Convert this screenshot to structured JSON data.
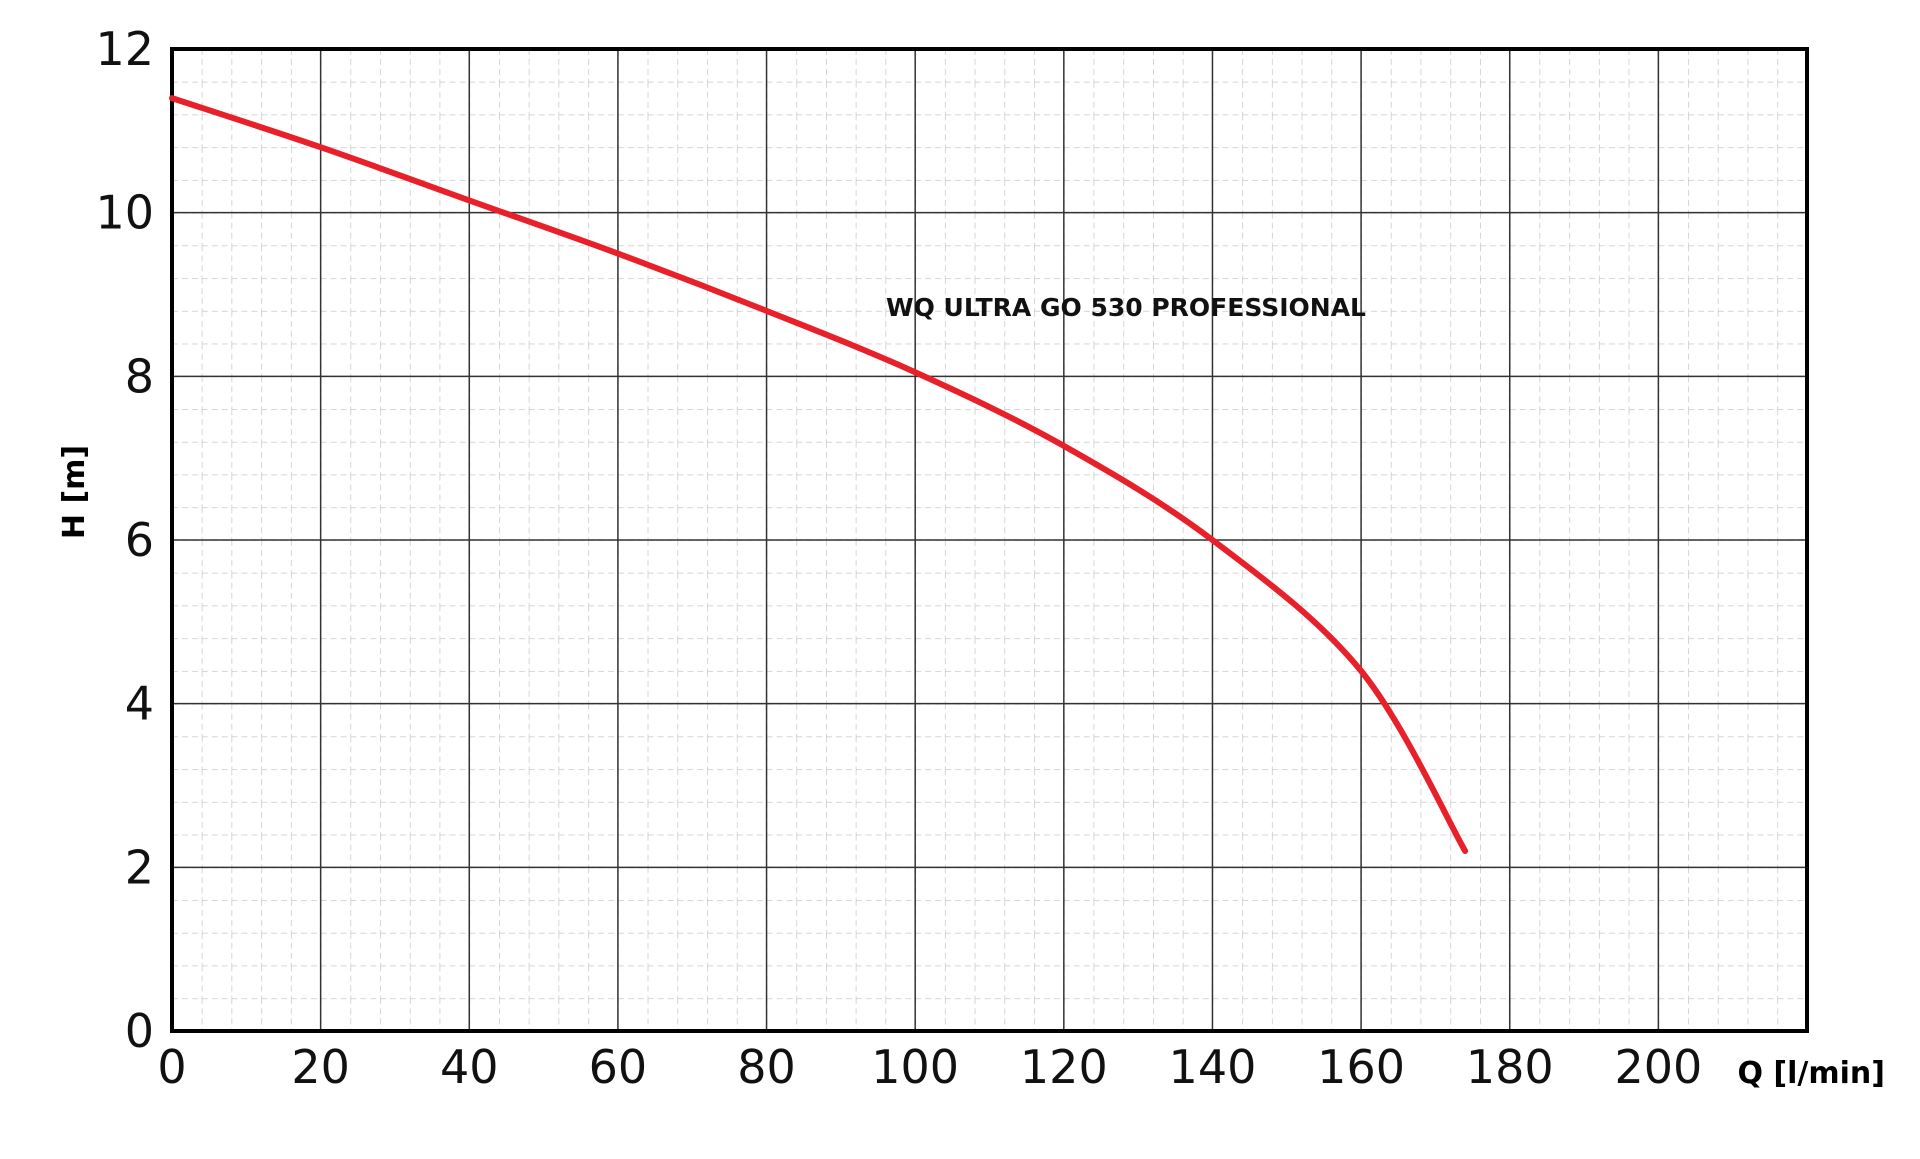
{
  "chart_data": {
    "type": "line",
    "annotation": "WQ ULTRA GO 530 PROFESSIONAL",
    "x_label": "Q [l/min]",
    "y_label": "H [m]",
    "x": [
      0,
      20,
      40,
      60,
      80,
      100,
      120,
      140,
      160,
      174
    ],
    "series": [
      {
        "name": "WQ ULTRA GO 530 PROFESSIONAL",
        "color": "#e8202a",
        "values": [
          11.4,
          10.8,
          10.15,
          9.5,
          8.8,
          8.05,
          7.15,
          6.0,
          4.4,
          2.2
        ]
      }
    ],
    "xlim": [
      0,
      220
    ],
    "xticks": [
      0,
      20,
      40,
      60,
      80,
      100,
      120,
      140,
      160,
      180,
      200
    ],
    "ylim": [
      0,
      12
    ],
    "yticks": [
      0,
      2,
      4,
      6,
      8,
      10,
      12
    ],
    "grid": true
  }
}
